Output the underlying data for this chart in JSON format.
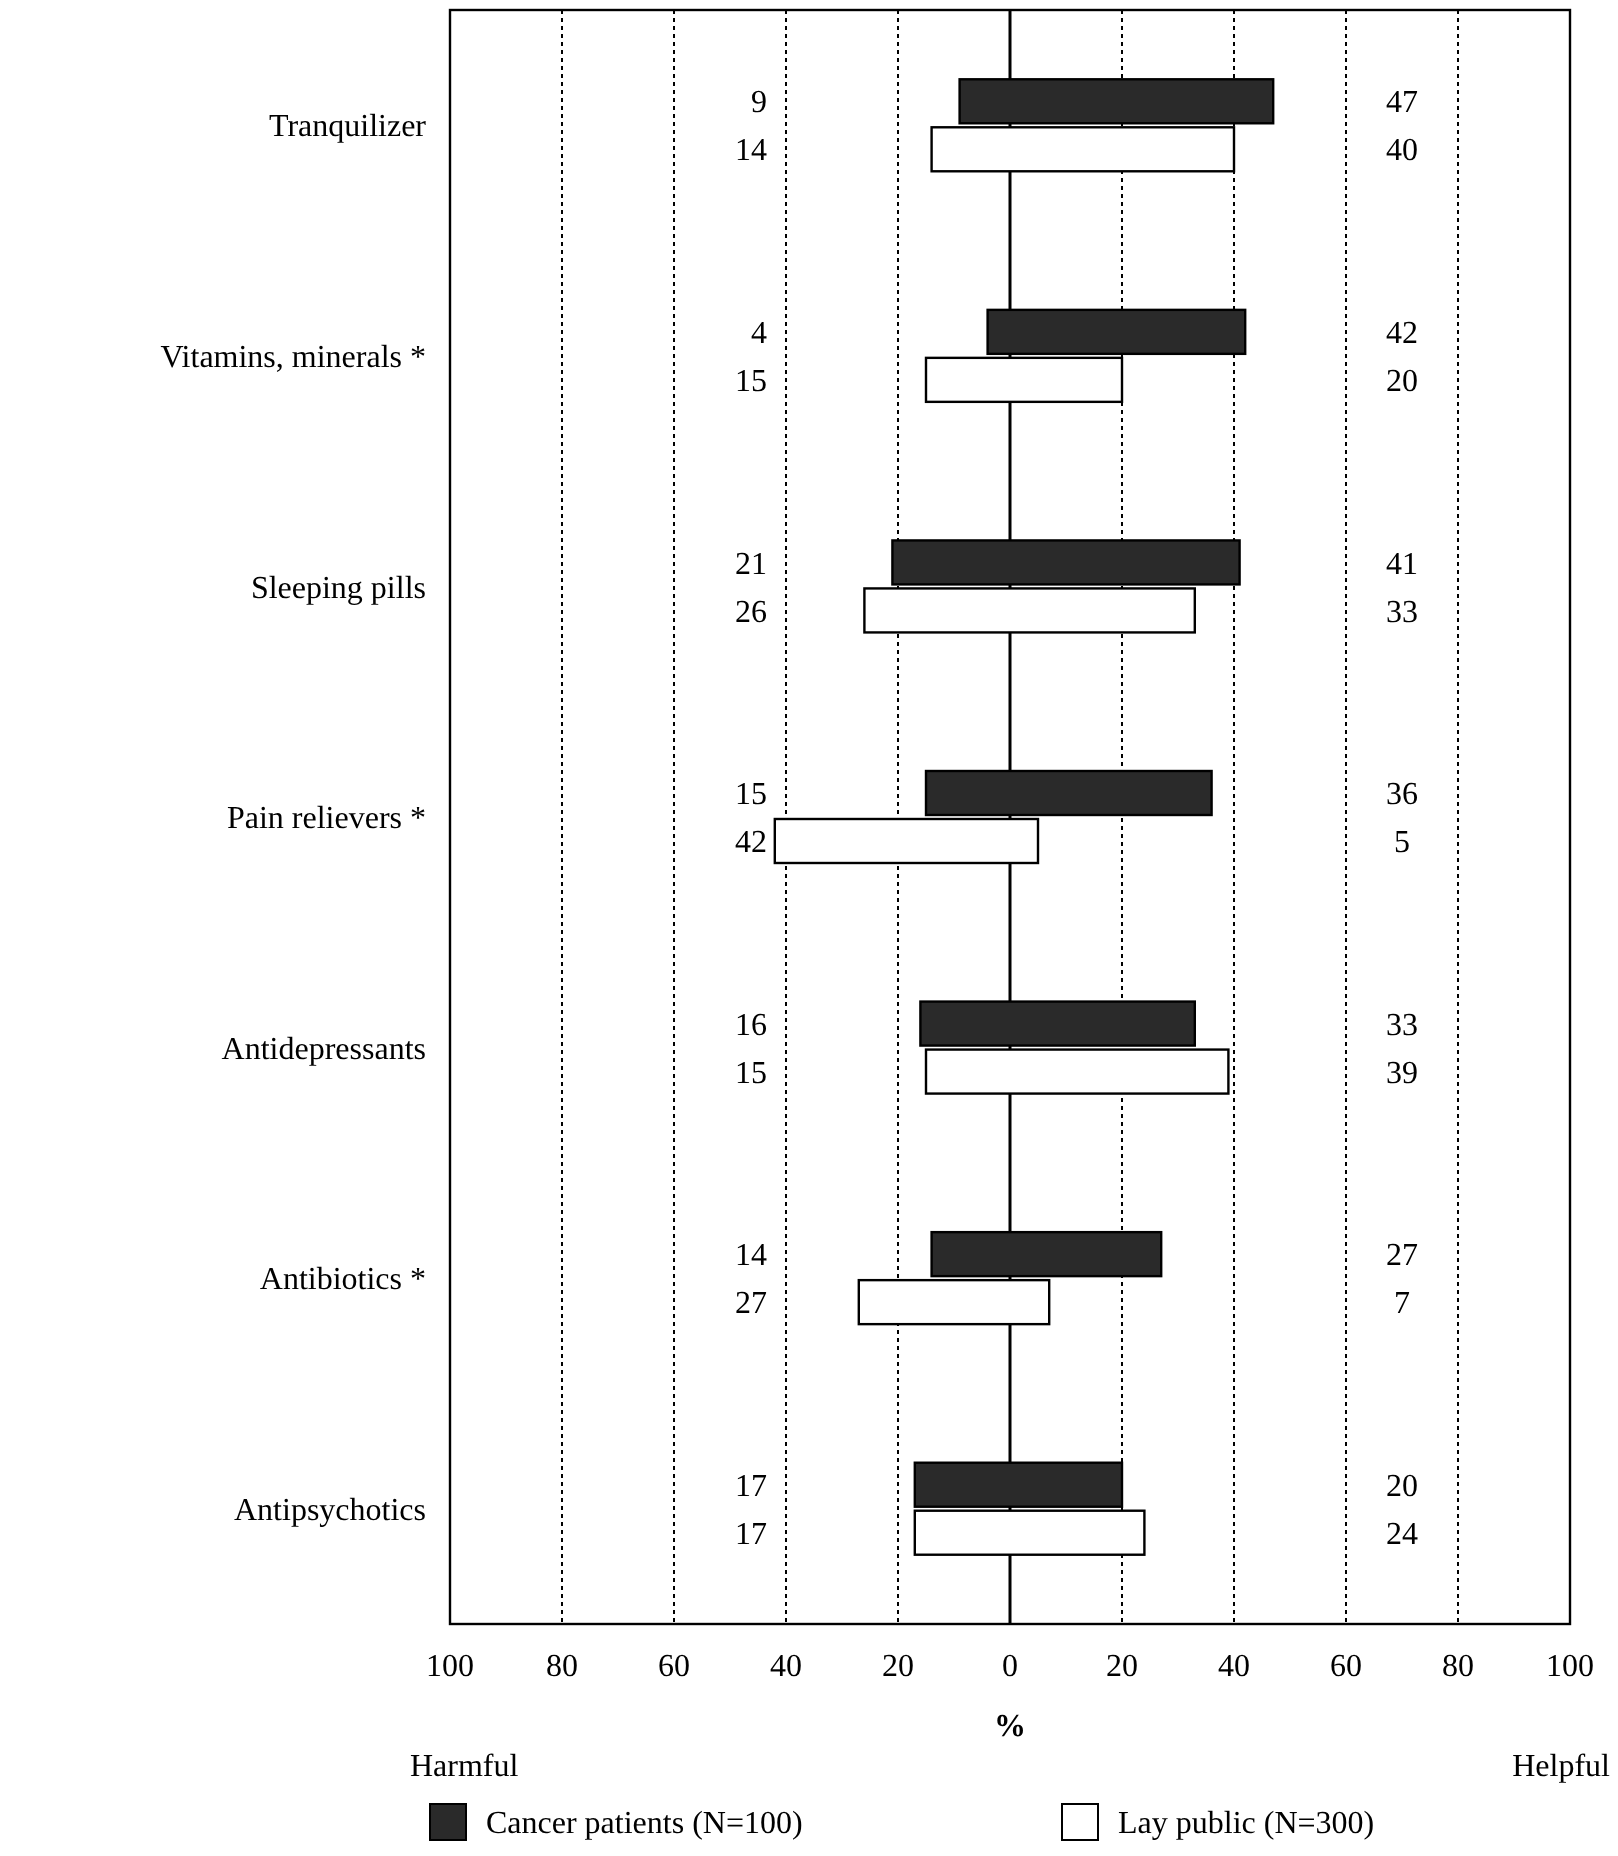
{
  "chart_data": {
    "type": "bar",
    "orientation": "horizontal",
    "xlabel": "%",
    "categories": [
      "Tranquilizer",
      "Vitamins, minerals *",
      "Sleeping pills",
      "Pain relievers *",
      "Antidepressants",
      "Antibiotics *",
      "Antipsychotics"
    ],
    "series": [
      {
        "name": "Cancer patients (N=100)",
        "color": "#2a2a2a",
        "base": [
          -9,
          -4,
          -21,
          -15,
          -16,
          -14,
          -17
        ],
        "values": [
          56,
          46,
          62,
          51,
          49,
          41,
          37
        ]
      },
      {
        "name": "Lay public (N=300)",
        "color": "#ffffff",
        "base": [
          -14,
          -15,
          -26,
          -42,
          -15,
          -27,
          -17
        ],
        "values": [
          54,
          35,
          59,
          47,
          54,
          34,
          41
        ]
      }
    ],
    "xlim": [
      -100,
      100
    ],
    "xticks": [
      {
        "value": -100,
        "label": "100"
      },
      {
        "value": -80,
        "label": "80"
      },
      {
        "value": -60,
        "label": "60"
      },
      {
        "value": -40,
        "label": "40"
      },
      {
        "value": -20,
        "label": "20"
      },
      0,
      20,
      40,
      60,
      80,
      100
    ],
    "grid": "x",
    "legend": "bottom",
    "annotations": [
      "Harmful",
      "Helpful",
      "9",
      "47",
      "14",
      "40",
      "4",
      "42",
      "15",
      "20",
      "21",
      "41",
      "26",
      "33",
      "15",
      "36",
      "42",
      "5",
      "16",
      "33",
      "15",
      "39",
      "14",
      "27",
      "27",
      "7",
      "17",
      "20",
      "17",
      "24"
    ]
  }
}
